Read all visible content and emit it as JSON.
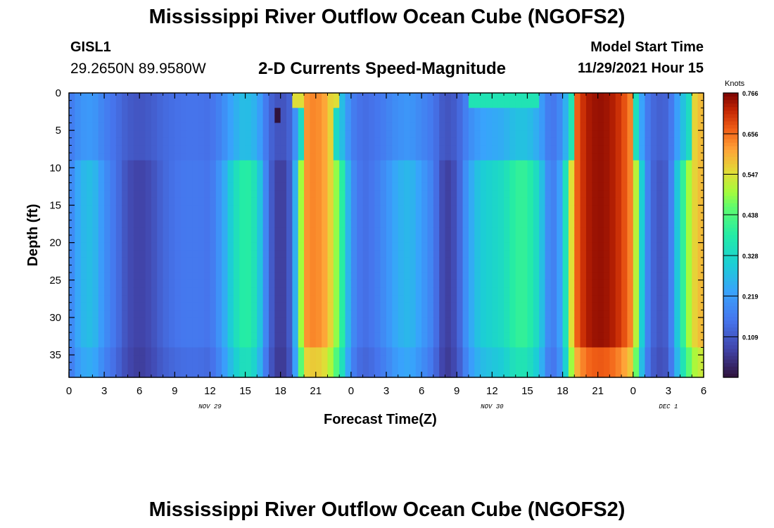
{
  "header": {
    "title": "Mississippi River Outflow Ocean Cube (NGOFS2)",
    "station_id": "GISL1",
    "coordinates": "29.2650N  89.9580W",
    "subtitle": "2-D Currents Speed-Magnitude",
    "model_start_label": "Model Start Time",
    "model_start_value": "11/29/2021 Hour 15"
  },
  "footer": {
    "repeated_title": "Mississippi River Outflow Ocean Cube (NGOFS2)"
  },
  "chart_data": {
    "type": "heatmap",
    "title": "2-D Currents Speed-Magnitude",
    "xlabel": "Forecast Time(Z)",
    "ylabel": "Depth (ft)",
    "x_range_hours": [
      0,
      54
    ],
    "y_range_ft": [
      0,
      38
    ],
    "x_ticks": [
      "0",
      "3",
      "6",
      "9",
      "12",
      "15",
      "18",
      "21",
      "0",
      "3",
      "6",
      "9",
      "12",
      "15",
      "18",
      "21",
      "0",
      "3",
      "6"
    ],
    "y_ticks": [
      "0",
      "5",
      "10",
      "15",
      "20",
      "25",
      "30",
      "35"
    ],
    "date_labels": [
      {
        "label": "NOV 29",
        "hour": 12
      },
      {
        "label": "NOV 30",
        "hour": 36
      },
      {
        "label": "DEC 1",
        "hour": 51
      }
    ],
    "colorbar": {
      "units": "Knots",
      "ticks": [
        "0.766",
        "0.656",
        "0.547",
        "0.438",
        "0.328",
        "0.219",
        "0.109"
      ],
      "min": 0.0,
      "max": 0.766
    },
    "colors": {
      "low": "#30123b",
      "mid": "#a4fc3c",
      "high": "#7a0403"
    },
    "column_speeds_knots": {
      "note": "Approximate column-average speed by forecast hour read from the color field",
      "hours": [
        0,
        1,
        2,
        3,
        4,
        5,
        6,
        7,
        8,
        9,
        10,
        11,
        12,
        13,
        14,
        15,
        16,
        17,
        18,
        19,
        20,
        21,
        22,
        23,
        24,
        25,
        26,
        27,
        28,
        29,
        30,
        31,
        32,
        33,
        34,
        35,
        36,
        37,
        38,
        39,
        40,
        41,
        42,
        43,
        44,
        45,
        46,
        47,
        48,
        49,
        50,
        51,
        52,
        53,
        54
      ],
      "values": [
        0.17,
        0.26,
        0.28,
        0.2,
        0.15,
        0.09,
        0.07,
        0.09,
        0.13,
        0.15,
        0.16,
        0.16,
        0.15,
        0.22,
        0.33,
        0.4,
        0.34,
        0.13,
        0.05,
        0.13,
        0.62,
        0.64,
        0.6,
        0.45,
        0.2,
        0.14,
        0.16,
        0.2,
        0.25,
        0.27,
        0.22,
        0.17,
        0.06,
        0.1,
        0.23,
        0.3,
        0.32,
        0.34,
        0.4,
        0.4,
        0.32,
        0.15,
        0.25,
        0.65,
        0.73,
        0.75,
        0.74,
        0.7,
        0.62,
        0.2,
        0.1,
        0.12,
        0.35,
        0.55,
        0.6
      ]
    }
  }
}
